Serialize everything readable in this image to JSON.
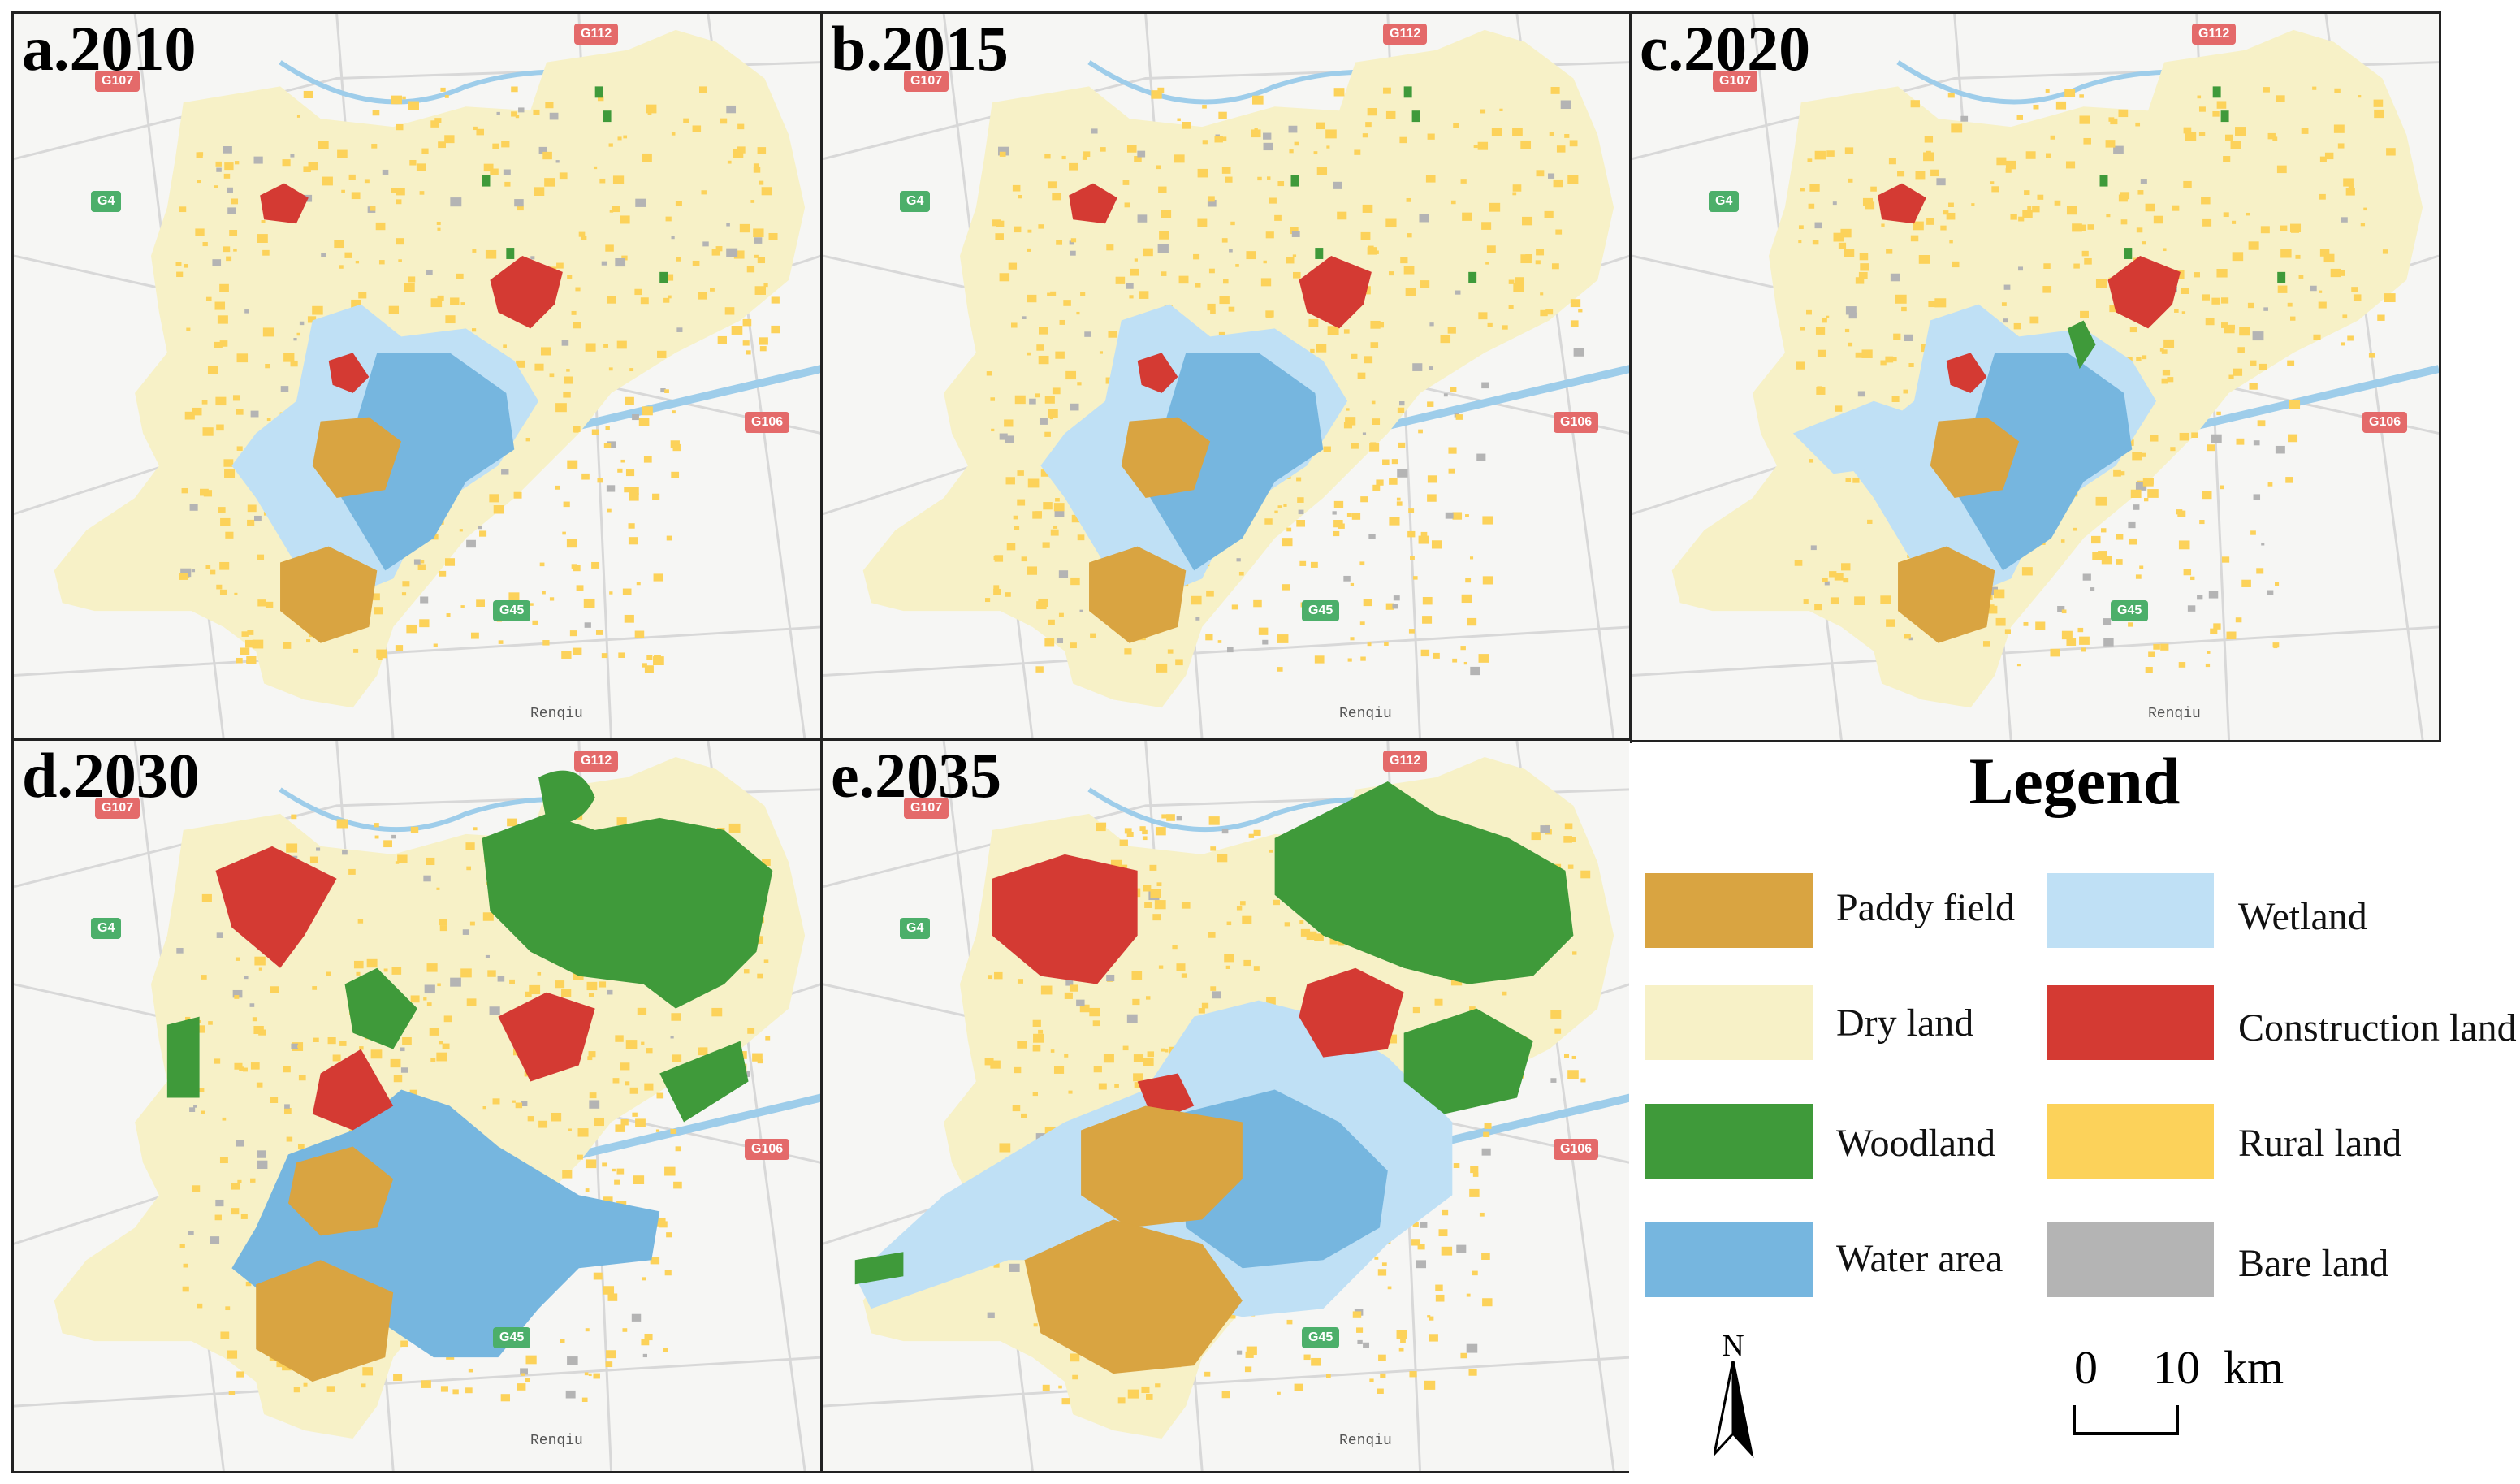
{
  "panels": [
    {
      "title": "a.2010",
      "scenario": "y2010"
    },
    {
      "title": "b.2015",
      "scenario": "y2015"
    },
    {
      "title": "c.2020",
      "scenario": "y2020"
    },
    {
      "title": "d.2030",
      "scenario": "y2030"
    },
    {
      "title": "e.2035",
      "scenario": "y2035"
    }
  ],
  "basemap_labels": {
    "g112": "G112",
    "g107": "G107",
    "g4": "G4",
    "g106": "G106",
    "g45": "G45",
    "city": "Renqiu"
  },
  "legend": {
    "title": "Legend",
    "items": [
      {
        "label": "Paddy field",
        "color": "#d9a441"
      },
      {
        "label": "Wetland",
        "color": "#bfe0f5"
      },
      {
        "label": "Dry land",
        "color": "#f7f1c7"
      },
      {
        "label": "Construction land",
        "color": "#d43a33"
      },
      {
        "label": "Woodland",
        "color": "#3f9a3a"
      },
      {
        "label": "Rural land",
        "color": "#fcd25a"
      },
      {
        "label": "Water area",
        "color": "#76b6df"
      },
      {
        "label": "Bare land",
        "color": "#b4b4b4"
      }
    ],
    "north_label": "N",
    "scale": {
      "zero": "0",
      "ten": "10",
      "unit": "km"
    }
  }
}
